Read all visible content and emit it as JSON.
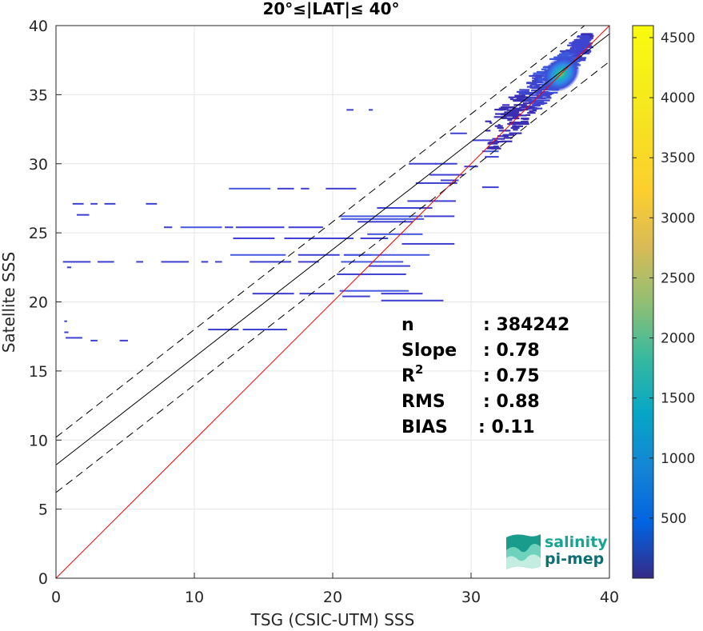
{
  "chart_data": {
    "type": "scatter",
    "subtype": "density-scatter (2D histogram)",
    "title": "20°≤|LAT|≤ 40°",
    "xlabel": "TSG (CSIC-UTM) SSS",
    "ylabel": "Satellite SSS",
    "xlim": [
      0,
      40
    ],
    "ylim": [
      0,
      40
    ],
    "x_ticks": [
      "0",
      "10",
      "20",
      "30",
      "40"
    ],
    "y_ticks": [
      "0",
      "5",
      "10",
      "15",
      "20",
      "25",
      "30",
      "35",
      "40"
    ],
    "grid": true,
    "colorbar": {
      "range": [
        0,
        4600
      ],
      "ticks": [
        "500",
        "1000",
        "1500",
        "2000",
        "2500",
        "3000",
        "3500",
        "4000",
        "4500"
      ],
      "colormap": "parula"
    },
    "lines": [
      {
        "label": "1:1",
        "color": "#ff0000",
        "style": "solid",
        "points": [
          [
            0,
            0
          ],
          [
            40,
            40
          ]
        ]
      },
      {
        "label": "fit",
        "color": "#000000",
        "style": "solid",
        "points": [
          [
            0,
            8.2
          ],
          [
            40,
            39.4
          ]
        ]
      },
      {
        "label": "fit+std",
        "color": "#000000",
        "style": "dashed",
        "points": [
          [
            0,
            10.2
          ],
          [
            40,
            41.4
          ]
        ]
      },
      {
        "label": "fit-std",
        "color": "#000000",
        "style": "dashed",
        "points": [
          [
            0,
            6.2
          ],
          [
            40,
            37.4
          ]
        ]
      }
    ],
    "stats": [
      {
        "key": "n",
        "value": ": 384242"
      },
      {
        "key": "Slope",
        "value": ": 0.78"
      },
      {
        "key": "R",
        "sup": "2",
        "value": ": 0.75"
      },
      {
        "key": "RMS",
        "value": ": 0.88"
      },
      {
        "key": "BIAS",
        "value": ": 0.11"
      }
    ],
    "dense_cluster": {
      "x_range": [
        31,
        38.5
      ],
      "y_range": [
        31,
        39.5
      ],
      "peak": [
        36.5,
        36.5
      ]
    },
    "bins": [
      {
        "x": 1.2,
        "y": 27.1,
        "w": 0.8,
        "c": 1
      },
      {
        "x": 2.5,
        "y": 27.1,
        "w": 0.5,
        "c": 1
      },
      {
        "x": 3.5,
        "y": 27.1,
        "w": 0.8,
        "c": 1
      },
      {
        "x": 6.5,
        "y": 27.1,
        "w": 0.8,
        "c": 1
      },
      {
        "x": 1.5,
        "y": 26.3,
        "w": 0.9,
        "c": 1
      },
      {
        "x": 7.8,
        "y": 25.4,
        "w": 0.6,
        "c": 1
      },
      {
        "x": 9.0,
        "y": 25.4,
        "w": 3.0,
        "c": 2
      },
      {
        "x": 12.2,
        "y": 25.4,
        "w": 0.6,
        "c": 1
      },
      {
        "x": 0.5,
        "y": 22.9,
        "w": 2.0,
        "c": 1
      },
      {
        "x": 3.0,
        "y": 22.9,
        "w": 1.2,
        "c": 1
      },
      {
        "x": 5.8,
        "y": 22.9,
        "w": 0.5,
        "c": 1
      },
      {
        "x": 7.6,
        "y": 22.9,
        "w": 2.0,
        "c": 1
      },
      {
        "x": 10.5,
        "y": 22.9,
        "w": 0.5,
        "c": 1
      },
      {
        "x": 11.5,
        "y": 22.9,
        "w": 0.5,
        "c": 1
      },
      {
        "x": 0.8,
        "y": 22.5,
        "w": 0.3,
        "c": 1
      },
      {
        "x": 0.7,
        "y": 17.4,
        "w": 1.2,
        "c": 1
      },
      {
        "x": 2.5,
        "y": 17.2,
        "w": 0.5,
        "c": 1
      },
      {
        "x": 4.6,
        "y": 17.2,
        "w": 0.6,
        "c": 1
      },
      {
        "x": 0.6,
        "y": 18.6,
        "w": 0.2,
        "c": 1
      },
      {
        "x": 0.6,
        "y": 17.8,
        "w": 0.3,
        "c": 1
      },
      {
        "x": 11.0,
        "y": 18.0,
        "w": 2.2,
        "c": 1
      },
      {
        "x": 13.5,
        "y": 18.0,
        "w": 3.2,
        "c": 1
      },
      {
        "x": 12.5,
        "y": 28.2,
        "w": 3.0,
        "c": 2
      },
      {
        "x": 16.0,
        "y": 28.2,
        "w": 1.2,
        "c": 1
      },
      {
        "x": 17.7,
        "y": 28.2,
        "w": 0.6,
        "c": 1
      },
      {
        "x": 19.5,
        "y": 28.2,
        "w": 2.2,
        "c": 1
      },
      {
        "x": 13.0,
        "y": 25.4,
        "w": 3.5,
        "c": 1
      },
      {
        "x": 16.8,
        "y": 25.4,
        "w": 2.5,
        "c": 1
      },
      {
        "x": 12.8,
        "y": 24.6,
        "w": 3.0,
        "c": 1
      },
      {
        "x": 16.5,
        "y": 24.6,
        "w": 5.0,
        "c": 1
      },
      {
        "x": 22.0,
        "y": 24.6,
        "w": 2.0,
        "c": 1
      },
      {
        "x": 12.6,
        "y": 23.4,
        "w": 4.0,
        "c": 2
      },
      {
        "x": 17.5,
        "y": 23.4,
        "w": 3.0,
        "c": 1
      },
      {
        "x": 20.8,
        "y": 23.4,
        "w": 2.0,
        "c": 1
      },
      {
        "x": 14.0,
        "y": 22.9,
        "w": 3.0,
        "c": 1
      },
      {
        "x": 17.5,
        "y": 22.9,
        "w": 1.5,
        "c": 1
      },
      {
        "x": 14.2,
        "y": 20.6,
        "w": 3.0,
        "c": 1
      },
      {
        "x": 17.6,
        "y": 20.6,
        "w": 2.5,
        "c": 1
      },
      {
        "x": 20.5,
        "y": 26.2,
        "w": 6.0,
        "c": 2
      },
      {
        "x": 26.6,
        "y": 26.2,
        "w": 2.2,
        "c": 1
      },
      {
        "x": 20.6,
        "y": 26.0,
        "w": 6.0,
        "c": 2
      },
      {
        "x": 21.8,
        "y": 25.8,
        "w": 4.0,
        "c": 1
      },
      {
        "x": 22.5,
        "y": 24.9,
        "w": 4.0,
        "c": 2
      },
      {
        "x": 23.2,
        "y": 26.8,
        "w": 4.0,
        "c": 1
      },
      {
        "x": 25.4,
        "y": 27.3,
        "w": 3.5,
        "c": 1
      },
      {
        "x": 25.0,
        "y": 24.2,
        "w": 3.8,
        "c": 1
      },
      {
        "x": 21.0,
        "y": 23.4,
        "w": 6.0,
        "c": 2
      },
      {
        "x": 20.6,
        "y": 22.9,
        "w": 4.5,
        "c": 2
      },
      {
        "x": 22.6,
        "y": 22.6,
        "w": 3.0,
        "c": 1
      },
      {
        "x": 20.3,
        "y": 22.0,
        "w": 5.0,
        "c": 1
      },
      {
        "x": 20.5,
        "y": 20.8,
        "w": 5.0,
        "c": 2
      },
      {
        "x": 20.7,
        "y": 20.4,
        "w": 2.0,
        "c": 1
      },
      {
        "x": 23.5,
        "y": 20.6,
        "w": 3.0,
        "c": 1
      },
      {
        "x": 23.5,
        "y": 20.1,
        "w": 4.5,
        "c": 1
      },
      {
        "x": 21.0,
        "y": 33.9,
        "w": 0.5,
        "c": 1
      },
      {
        "x": 22.6,
        "y": 33.9,
        "w": 0.3,
        "c": 1
      },
      {
        "x": 25.5,
        "y": 30.0,
        "w": 2.0,
        "c": 1
      },
      {
        "x": 27.4,
        "y": 30.0,
        "w": 1.6,
        "c": 1
      },
      {
        "x": 26.0,
        "y": 28.6,
        "w": 3.0,
        "c": 1
      },
      {
        "x": 27.8,
        "y": 28.8,
        "w": 1.3,
        "c": 1
      },
      {
        "x": 27.0,
        "y": 29.2,
        "w": 2.5,
        "c": 1
      },
      {
        "x": 30.8,
        "y": 30.9,
        "w": 1.2,
        "c": 2
      },
      {
        "x": 31.0,
        "y": 30.5,
        "w": 1.0,
        "c": 1
      },
      {
        "x": 29.5,
        "y": 29.8,
        "w": 1.0,
        "c": 1
      },
      {
        "x": 30.8,
        "y": 28.3,
        "w": 1.2,
        "c": 1
      },
      {
        "x": 28.5,
        "y": 32.2,
        "w": 1.2,
        "c": 1
      },
      {
        "x": 30.1,
        "y": 31.7,
        "w": 1.5,
        "c": 1
      }
    ]
  }
}
